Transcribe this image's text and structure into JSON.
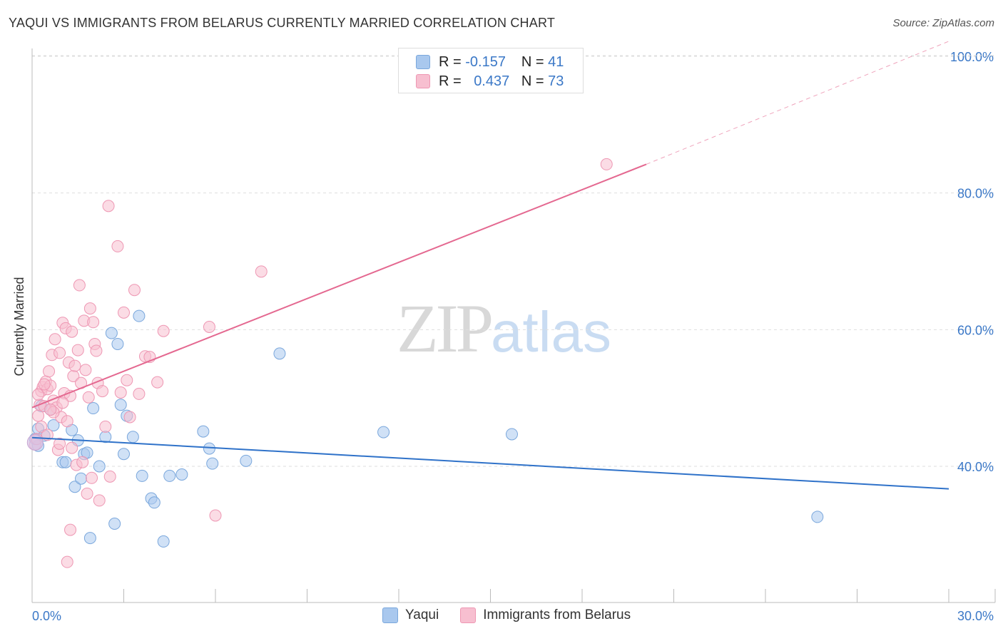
{
  "title": "YAQUI VS IMMIGRANTS FROM BELARUS CURRENTLY MARRIED CORRELATION CHART",
  "source": "Source: ZipAtlas.com",
  "watermark": {
    "zip": "ZIP",
    "atlas": "atlas"
  },
  "legend": {
    "rows": [
      {
        "r_label": "R =",
        "r_value": "-0.157",
        "n_label": "N =",
        "n_value": "41",
        "color": "#a9c8ee",
        "border": "#7aa7dc"
      },
      {
        "r_label": "R =",
        "r_value": "0.437",
        "n_label": "N =",
        "n_value": "73",
        "color": "#f7bfd0",
        "border": "#ee97b3"
      }
    ]
  },
  "bottom_legend": [
    {
      "label": "Yaqui",
      "color": "#a9c8ee",
      "border": "#7aa7dc"
    },
    {
      "label": "Immigrants from Belarus",
      "color": "#f7bfd0",
      "border": "#ee97b3"
    }
  ],
  "chart_data": {
    "type": "scatter",
    "title": "YAQUI VS IMMIGRANTS FROM BELARUS CURRENTLY MARRIED CORRELATION CHART",
    "xlabel": "",
    "ylabel": "Currently Married",
    "xlim": [
      0,
      30
    ],
    "ylim": [
      20,
      102
    ],
    "x_tick_labels": [
      "0.0%",
      "30.0%"
    ],
    "y_ticks": [
      40,
      60,
      80,
      100
    ],
    "y_tick_labels": [
      "40.0%",
      "60.0%",
      "80.0%",
      "100.0%"
    ],
    "series": [
      {
        "name": "Yaqui",
        "color": "#a9c8ee",
        "stroke": "#7aa7dc",
        "line_color": "#2f72c9",
        "trend": {
          "x": [
            0,
            30
          ],
          "y": [
            44.2,
            36.7
          ],
          "dashed_extension": false
        },
        "points": [
          [
            0.1,
            44.0
          ],
          [
            0.2,
            45.5
          ],
          [
            0.4,
            44.5
          ],
          [
            0.6,
            48.3
          ],
          [
            0.7,
            46.0
          ],
          [
            1.0,
            40.6
          ],
          [
            1.1,
            40.6
          ],
          [
            1.3,
            45.3
          ],
          [
            1.4,
            37.0
          ],
          [
            1.5,
            43.8
          ],
          [
            1.6,
            38.2
          ],
          [
            1.7,
            41.8
          ],
          [
            1.8,
            42.0
          ],
          [
            2.0,
            48.5
          ],
          [
            2.2,
            40.0
          ],
          [
            2.4,
            44.3
          ],
          [
            2.6,
            59.5
          ],
          [
            2.7,
            31.6
          ],
          [
            2.8,
            57.9
          ],
          [
            2.9,
            49.0
          ],
          [
            3.0,
            41.8
          ],
          [
            3.1,
            47.4
          ],
          [
            3.3,
            44.3
          ],
          [
            3.5,
            62.0
          ],
          [
            3.6,
            38.6
          ],
          [
            3.9,
            35.3
          ],
          [
            4.0,
            34.7
          ],
          [
            4.3,
            29.0
          ],
          [
            4.5,
            38.6
          ],
          [
            4.9,
            38.8
          ],
          [
            5.6,
            45.1
          ],
          [
            5.8,
            42.6
          ],
          [
            5.9,
            40.4
          ],
          [
            7.0,
            40.8
          ],
          [
            8.1,
            56.5
          ],
          [
            11.5,
            45.0
          ],
          [
            15.7,
            44.7
          ],
          [
            25.7,
            32.6
          ],
          [
            1.9,
            29.5
          ],
          [
            0.2,
            43.0
          ],
          [
            0.3,
            48.8
          ]
        ]
      },
      {
        "name": "Immigrants from Belarus",
        "color": "#f7bfd0",
        "stroke": "#ee97b3",
        "line_color": "#e46890",
        "trend": {
          "x": [
            0,
            20.1
          ],
          "y": [
            48.6,
            84.2
          ],
          "dashed_extension": true,
          "extension_to": [
            30,
            102.2
          ]
        },
        "points": [
          [
            0.1,
            43.2
          ],
          [
            0.15,
            44.0
          ],
          [
            0.2,
            47.4
          ],
          [
            0.25,
            49.0
          ],
          [
            0.3,
            51.0
          ],
          [
            0.35,
            51.6
          ],
          [
            0.4,
            48.8
          ],
          [
            0.45,
            52.4
          ],
          [
            0.5,
            51.3
          ],
          [
            0.55,
            53.9
          ],
          [
            0.6,
            51.8
          ],
          [
            0.65,
            56.3
          ],
          [
            0.7,
            49.6
          ],
          [
            0.75,
            58.6
          ],
          [
            0.8,
            48.6
          ],
          [
            0.85,
            42.4
          ],
          [
            0.9,
            56.6
          ],
          [
            0.95,
            47.2
          ],
          [
            1.0,
            61.0
          ],
          [
            1.05,
            50.7
          ],
          [
            1.1,
            60.2
          ],
          [
            1.15,
            46.6
          ],
          [
            1.2,
            55.2
          ],
          [
            1.25,
            50.3
          ],
          [
            1.3,
            59.7
          ],
          [
            1.35,
            53.2
          ],
          [
            1.4,
            54.7
          ],
          [
            1.45,
            40.2
          ],
          [
            1.5,
            57.0
          ],
          [
            1.55,
            66.5
          ],
          [
            1.6,
            52.2
          ],
          [
            1.65,
            40.6
          ],
          [
            1.7,
            61.3
          ],
          [
            1.75,
            54.1
          ],
          [
            1.8,
            36.0
          ],
          [
            1.85,
            50.1
          ],
          [
            1.9,
            63.1
          ],
          [
            1.95,
            38.3
          ],
          [
            2.0,
            61.1
          ],
          [
            2.05,
            57.9
          ],
          [
            2.1,
            56.9
          ],
          [
            2.15,
            52.2
          ],
          [
            2.2,
            35.0
          ],
          [
            2.3,
            51.0
          ],
          [
            2.5,
            78.1
          ],
          [
            2.55,
            38.5
          ],
          [
            2.8,
            72.2
          ],
          [
            2.9,
            50.8
          ],
          [
            3.0,
            62.5
          ],
          [
            3.1,
            52.6
          ],
          [
            3.2,
            47.2
          ],
          [
            3.35,
            65.8
          ],
          [
            3.5,
            50.6
          ],
          [
            3.7,
            56.1
          ],
          [
            3.85,
            56.0
          ],
          [
            4.1,
            52.3
          ],
          [
            4.3,
            59.8
          ],
          [
            5.8,
            60.4
          ],
          [
            6.0,
            32.8
          ],
          [
            7.5,
            68.5
          ],
          [
            18.8,
            84.2
          ],
          [
            1.25,
            30.7
          ],
          [
            1.15,
            26.0
          ],
          [
            0.3,
            45.8
          ],
          [
            0.5,
            44.6
          ],
          [
            0.7,
            47.9
          ],
          [
            0.9,
            43.3
          ],
          [
            1.0,
            49.3
          ],
          [
            0.4,
            52.0
          ],
          [
            0.6,
            48.3
          ],
          [
            1.3,
            42.7
          ],
          [
            2.4,
            45.8
          ],
          [
            0.2,
            50.5
          ]
        ]
      }
    ]
  }
}
